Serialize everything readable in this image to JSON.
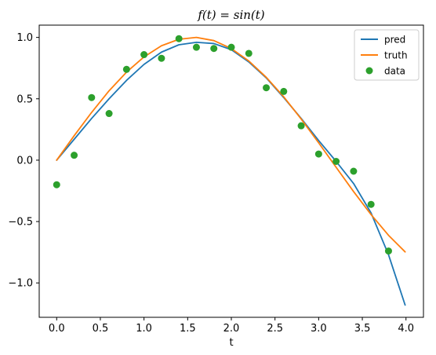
{
  "chart_data": {
    "type": "line",
    "title": "f(t) = sin(t)",
    "xlabel": "t",
    "ylabel": "",
    "xlim": [
      -0.2,
      4.2
    ],
    "ylim": [
      -1.28,
      1.1
    ],
    "xticks": [
      0.0,
      0.5,
      1.0,
      1.5,
      2.0,
      2.5,
      3.0,
      3.5,
      4.0
    ],
    "xtick_labels": [
      "0.0",
      "0.5",
      "1.0",
      "1.5",
      "2.0",
      "2.5",
      "3.0",
      "3.5",
      "4.0"
    ],
    "yticks": [
      1.0,
      0.5,
      0.0,
      -0.5,
      -1.0
    ],
    "ytick_labels": [
      "1.0",
      "0.5",
      "0.0",
      "−0.5",
      "−1.0"
    ],
    "grid": false,
    "legend_position": "top-right",
    "series": [
      {
        "name": "pred",
        "kind": "line",
        "color": "#1f77b4",
        "x": [
          0.0,
          0.2,
          0.4,
          0.6,
          0.8,
          1.0,
          1.2,
          1.4,
          1.6,
          1.8,
          2.0,
          2.2,
          2.4,
          2.6,
          2.8,
          3.0,
          3.2,
          3.4,
          3.6,
          3.8,
          3.99
        ],
        "y": [
          0.0,
          0.17,
          0.34,
          0.5,
          0.65,
          0.78,
          0.88,
          0.94,
          0.96,
          0.95,
          0.9,
          0.8,
          0.67,
          0.51,
          0.34,
          0.16,
          -0.01,
          -0.19,
          -0.43,
          -0.77,
          -1.18
        ]
      },
      {
        "name": "truth",
        "kind": "line",
        "color": "#ff7f0e",
        "x": [
          0.0,
          0.2,
          0.4,
          0.6,
          0.8,
          1.0,
          1.2,
          1.4,
          1.6,
          1.8,
          2.0,
          2.2,
          2.4,
          2.6,
          2.8,
          3.0,
          3.2,
          3.4,
          3.6,
          3.8,
          3.99
        ],
        "y": [
          0.0,
          0.199,
          0.389,
          0.565,
          0.717,
          0.841,
          0.932,
          0.985,
          1.0,
          0.974,
          0.909,
          0.808,
          0.675,
          0.516,
          0.335,
          0.141,
          -0.058,
          -0.256,
          -0.443,
          -0.612,
          -0.747
        ]
      },
      {
        "name": "data",
        "kind": "scatter",
        "color": "#2ca02c",
        "x": [
          0.0,
          0.2,
          0.4,
          0.6,
          0.8,
          1.0,
          1.2,
          1.4,
          1.6,
          1.8,
          2.0,
          2.2,
          2.4,
          2.6,
          2.8,
          3.0,
          3.2,
          3.4,
          3.6,
          3.8
        ],
        "y": [
          -0.2,
          0.04,
          0.51,
          0.38,
          0.74,
          0.86,
          0.83,
          0.99,
          0.92,
          0.91,
          0.92,
          0.87,
          0.59,
          0.56,
          0.28,
          0.05,
          -0.01,
          -0.09,
          -0.36,
          -0.74
        ]
      }
    ]
  }
}
